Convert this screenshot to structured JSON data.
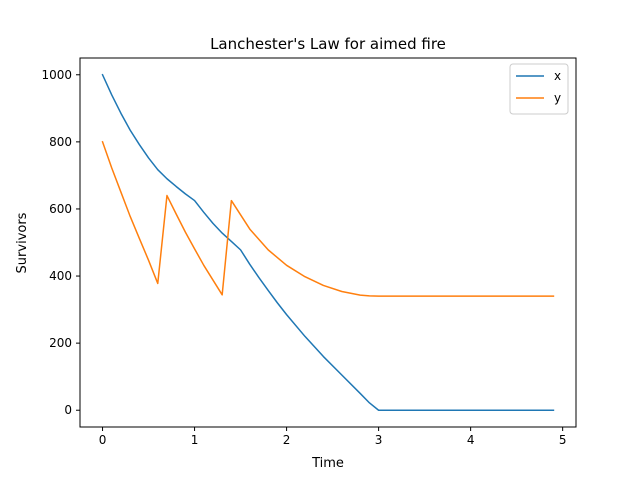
{
  "chart_data": {
    "type": "line",
    "title": "Lanchester's Law for aimed fire",
    "xlabel": "Time",
    "ylabel": "Survivors",
    "xlim": [
      -0.245,
      5.145
    ],
    "ylim": [
      -50,
      1050
    ],
    "xticks": [
      0,
      1,
      2,
      3,
      4,
      5
    ],
    "xtick_labels": [
      "0",
      "1",
      "2",
      "3",
      "4",
      "5"
    ],
    "yticks": [
      0,
      200,
      400,
      600,
      800,
      1000
    ],
    "ytick_labels": [
      "0",
      "200",
      "400",
      "600",
      "800",
      "1000"
    ],
    "grid": false,
    "legend_position": "top-right",
    "series": [
      {
        "name": "x",
        "color": "#1f77b4",
        "x": [
          0,
          0.1,
          0.2,
          0.3,
          0.4,
          0.5,
          0.6,
          0.7,
          0.8,
          0.9,
          1.0,
          1.1,
          1.2,
          1.3,
          1.4,
          1.5,
          1.6,
          1.7,
          1.8,
          1.9,
          2.0,
          2.2,
          2.4,
          2.6,
          2.8,
          2.9,
          3.0,
          3.5,
          4.0,
          4.5,
          4.9
        ],
        "y": [
          1000,
          940,
          885,
          835,
          792,
          752,
          717,
          690,
          667,
          645,
          625,
          590,
          557,
          528,
          503,
          478,
          435,
          395,
          357,
          320,
          285,
          220,
          160,
          105,
          50,
          22,
          0,
          0,
          0,
          0,
          0
        ]
      },
      {
        "name": "y",
        "color": "#ff7f0e",
        "x": [
          0,
          0.1,
          0.2,
          0.3,
          0.4,
          0.5,
          0.6,
          0.7,
          0.8,
          0.9,
          1.0,
          1.1,
          1.2,
          1.3,
          1.4,
          1.6,
          1.8,
          2.0,
          2.2,
          2.4,
          2.6,
          2.8,
          2.9,
          3.0,
          3.5,
          4.0,
          4.5,
          4.9
        ],
        "y": [
          800,
          722,
          650,
          578,
          512,
          447,
          378,
          640,
          585,
          531,
          481,
          432,
          388,
          344,
          625,
          540,
          478,
          432,
          398,
          372,
          354,
          343,
          341,
          340,
          340,
          340,
          340,
          340
        ]
      }
    ]
  }
}
